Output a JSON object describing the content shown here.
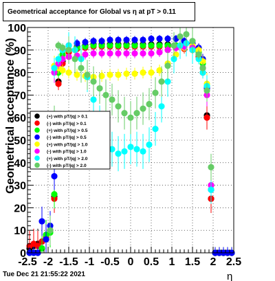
{
  "header": {
    "title": "Geometrical acceptance for Global vs   η at pT > 0.11"
  },
  "footer": {
    "timestamp": "Tue Dec 21 21:55:22 2021"
  },
  "chart_data": {
    "type": "scatter",
    "title": "Geometrical acceptance for Global vs   η at pT > 0.11",
    "xlabel": "η",
    "ylabel": "Geometrical acceptance (%)",
    "xlim": [
      -2.5,
      2.5
    ],
    "ylim": [
      0,
      100
    ],
    "x_ticks": [
      "-2.5",
      "-2",
      "-1.5",
      "-1",
      "-0.5",
      "0",
      "0.5",
      "1",
      "1.5",
      "2",
      "2.5"
    ],
    "y_ticks": [
      "0",
      "10",
      "20",
      "30",
      "40",
      "50",
      "60",
      "70",
      "80",
      "90",
      "100"
    ],
    "grid": true,
    "legend_position": "left-middle",
    "series": [
      {
        "name": "(+) with pT/|q| > 0.1",
        "color": "#000000",
        "x": [
          -2.45,
          -2.35,
          -2.25,
          -2.15,
          -2.05,
          -1.95,
          -1.85,
          -1.75,
          -1.65,
          -1.5,
          -1.3,
          -1.1,
          -0.9,
          -0.7,
          -0.5,
          -0.3,
          -0.1,
          0.1,
          0.3,
          0.5,
          0.7,
          0.9,
          1.1,
          1.3,
          1.5,
          1.65,
          1.75,
          1.85,
          1.95,
          2.05,
          2.15,
          2.25,
          2.35,
          2.45
        ],
        "y": [
          2,
          3,
          4,
          5,
          6,
          10,
          25,
          76,
          85,
          90,
          91.5,
          92,
          92.5,
          92.5,
          92.5,
          92.5,
          92.5,
          92.5,
          92.5,
          92.5,
          92.5,
          92.5,
          92,
          91.5,
          91,
          88,
          82,
          61,
          24,
          0,
          0,
          0,
          0,
          0
        ]
      },
      {
        "name": "(-) with pT/|q| > 0.1",
        "color": "#ff0000",
        "x": [
          -2.45,
          -2.35,
          -2.25,
          -2.15,
          -2.05,
          -1.95,
          -1.85,
          -1.75,
          -1.65,
          -1.5,
          -1.3,
          -1.1,
          -0.9,
          -0.7,
          -0.5,
          -0.3,
          -0.1,
          0.1,
          0.3,
          0.5,
          0.7,
          0.9,
          1.1,
          1.3,
          1.5,
          1.65,
          1.75,
          1.85,
          1.95,
          2.05,
          2.15,
          2.25,
          2.35,
          2.45
        ],
        "y": [
          3,
          4,
          3,
          5,
          7,
          10,
          24,
          75,
          84,
          89,
          90.5,
          91,
          91.5,
          91.5,
          91.5,
          91.5,
          91.5,
          91.5,
          91.5,
          91.5,
          91.5,
          91.5,
          91,
          90.5,
          90,
          87,
          80,
          60,
          24,
          0,
          0,
          0,
          0,
          0
        ]
      },
      {
        "name": "(+) with pT/|q| > 0.5",
        "color": "#00ff00",
        "x": [
          -2.45,
          -2.35,
          -2.25,
          -2.15,
          -2.05,
          -1.95,
          -1.85,
          -1.75,
          -1.65,
          -1.5,
          -1.3,
          -1.1,
          -0.9,
          -0.7,
          -0.5,
          -0.3,
          -0.1,
          0.1,
          0.3,
          0.5,
          0.7,
          0.9,
          1.1,
          1.3,
          1.5,
          1.65,
          1.75,
          1.85,
          1.95,
          2.05,
          2.15,
          2.25,
          2.35,
          2.45
        ],
        "y": [
          0,
          0,
          0,
          2,
          8,
          9,
          26,
          80,
          88,
          90,
          91,
          91.5,
          92,
          92,
          92,
          92,
          92,
          92,
          92,
          92,
          92,
          92,
          92,
          91.5,
          91,
          89,
          84,
          74,
          30,
          0,
          0,
          0,
          0,
          0
        ]
      },
      {
        "name": "(-) with pT/|q| > 0.5",
        "color": "#0000ff",
        "x": [
          -2.45,
          -2.35,
          -2.25,
          -2.15,
          -2.05,
          -1.95,
          -1.85,
          -1.75,
          -1.65,
          -1.5,
          -1.3,
          -1.1,
          -0.9,
          -0.7,
          -0.5,
          -0.3,
          -0.1,
          0.1,
          0.3,
          0.5,
          0.7,
          0.9,
          1.1,
          1.3,
          1.5,
          1.65,
          1.75,
          1.85,
          1.95,
          2.05,
          2.15,
          2.25,
          2.35,
          2.45
        ],
        "y": [
          0,
          0,
          0,
          14,
          6,
          12,
          34,
          82,
          90,
          92,
          93,
          93.5,
          94,
          94,
          94.5,
          94.5,
          94.5,
          94.5,
          94.5,
          95,
          95,
          95,
          95,
          94,
          93,
          91,
          86,
          73,
          28,
          0,
          0,
          0,
          0,
          0
        ]
      },
      {
        "name": "(+) with pT/|q| > 1.0",
        "color": "#ffff00",
        "x": [
          -1.85,
          -1.75,
          -1.65,
          -1.5,
          -1.3,
          -1.1,
          -0.9,
          -0.7,
          -0.5,
          -0.3,
          -0.1,
          0.1,
          0.3,
          0.5,
          0.7,
          0.9,
          1.1,
          1.3,
          1.5,
          1.65,
          1.75,
          1.85
        ],
        "y": [
          83,
          82,
          81,
          80,
          79,
          78.5,
          78,
          78.5,
          79,
          79,
          79.5,
          79.5,
          80,
          80,
          81,
          84,
          88,
          91,
          92,
          90,
          85,
          75
        ]
      },
      {
        "name": "(-) with pT/|q| > 1.0",
        "color": "#ff00ff",
        "x": [
          -1.85,
          -1.75,
          -1.65,
          -1.5,
          -1.3,
          -1.1,
          -0.9,
          -0.7,
          -0.5,
          -0.3,
          -0.1,
          0.1,
          0.3,
          0.5,
          0.7,
          0.9,
          1.1,
          1.3,
          1.5,
          1.65,
          1.75,
          1.85,
          1.95
        ],
        "y": [
          80,
          84,
          86,
          87,
          87.5,
          88,
          88.5,
          88.5,
          88.5,
          88.5,
          88.5,
          88.5,
          88.5,
          88.5,
          89,
          90,
          91,
          91.5,
          91,
          88,
          82,
          70,
          30
        ]
      },
      {
        "name": "(+) with pT/|q| > 2.0",
        "color": "#00ffff",
        "x": [
          -1.85,
          -1.75,
          -1.65,
          -1.5,
          -1.35,
          -1.2,
          -1.05,
          -0.9,
          -0.75,
          -0.6,
          -0.45,
          -0.3,
          -0.15,
          0.0,
          0.15,
          0.3,
          0.45,
          0.6,
          0.75,
          0.9,
          1.05,
          1.2,
          1.35,
          1.5,
          1.65,
          1.75,
          1.85,
          1.95
        ],
        "y": [
          82,
          86,
          90,
          92,
          90,
          86,
          78,
          68,
          58,
          50,
          46,
          44,
          45,
          47,
          46,
          45,
          48,
          55,
          65,
          76,
          86,
          92,
          93,
          90,
          86,
          80,
          74,
          28
        ]
      },
      {
        "name": "(-) with pT/|q| > 2.0",
        "color": "#66cc66",
        "x": [
          -1.95,
          -1.85,
          -1.75,
          -1.65,
          -1.5,
          -1.35,
          -1.2,
          -1.05,
          -0.9,
          -0.75,
          -0.6,
          -0.45,
          -0.3,
          -0.15,
          0.0,
          0.15,
          0.3,
          0.45,
          0.6,
          0.75,
          0.9,
          1.05,
          1.2,
          1.35,
          1.5,
          1.65,
          1.75,
          1.85,
          1.95
        ],
        "y": [
          10,
          60,
          92,
          91,
          90,
          86,
          82,
          79,
          76,
          73,
          70,
          68,
          65,
          62,
          60,
          62,
          64,
          66,
          71,
          76,
          83,
          92,
          96,
          97,
          94,
          88,
          82,
          72,
          38
        ]
      }
    ]
  }
}
